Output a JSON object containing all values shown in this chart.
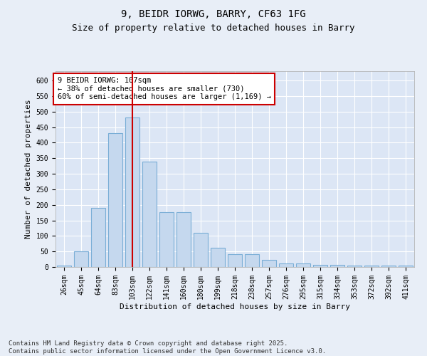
{
  "title1": "9, BEIDR IORWG, BARRY, CF63 1FG",
  "title2": "Size of property relative to detached houses in Barry",
  "xlabel": "Distribution of detached houses by size in Barry",
  "ylabel": "Number of detached properties",
  "categories": [
    "26sqm",
    "45sqm",
    "64sqm",
    "83sqm",
    "103sqm",
    "122sqm",
    "141sqm",
    "160sqm",
    "180sqm",
    "199sqm",
    "218sqm",
    "238sqm",
    "257sqm",
    "276sqm",
    "295sqm",
    "315sqm",
    "334sqm",
    "353sqm",
    "372sqm",
    "392sqm",
    "411sqm"
  ],
  "values": [
    5,
    51,
    191,
    430,
    480,
    338,
    176,
    176,
    109,
    62,
    42,
    42,
    22,
    11,
    11,
    8,
    8,
    4,
    4,
    4,
    4
  ],
  "bar_color": "#c5d8ee",
  "bar_edge_color": "#7aaed6",
  "red_line_index": 4,
  "annotation_text": "9 BEIDR IORWG: 107sqm\n← 38% of detached houses are smaller (730)\n60% of semi-detached houses are larger (1,169) →",
  "annotation_box_color": "#ffffff",
  "annotation_box_edge_color": "#cc0000",
  "ylim": [
    0,
    630
  ],
  "yticks": [
    0,
    50,
    100,
    150,
    200,
    250,
    300,
    350,
    400,
    450,
    500,
    550,
    600
  ],
  "footer": "Contains HM Land Registry data © Crown copyright and database right 2025.\nContains public sector information licensed under the Open Government Licence v3.0.",
  "background_color": "#e8eef7",
  "plot_background_color": "#dce6f5",
  "grid_color": "#ffffff",
  "title1_fontsize": 10,
  "title2_fontsize": 9,
  "axis_label_fontsize": 8,
  "tick_fontsize": 7,
  "annotation_fontsize": 7.5,
  "footer_fontsize": 6.5
}
